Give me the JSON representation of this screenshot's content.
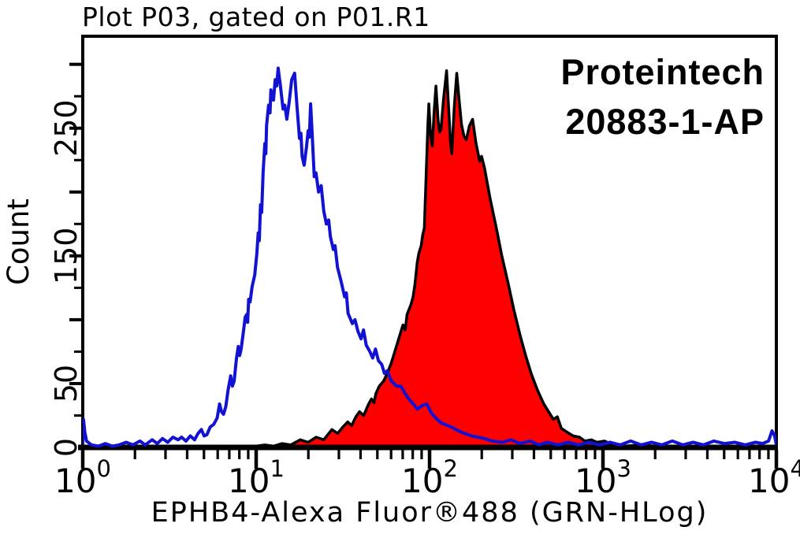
{
  "header": {
    "title": "Plot P03, gated on P01.R1"
  },
  "watermark": {
    "line1": "Proteintech",
    "line2": "20883-1-AP"
  },
  "chart_data": {
    "type": "line",
    "subtype": "flow-cytometry-overlay-histogram",
    "title": "Plot P03, gated on P01.R1",
    "xlabel": "EPHB4-Alexa Fluor®488 (GRN-HLog)",
    "ylabel": "Count",
    "x_scale": "log10",
    "x_units": "log10(fluorescence intensity)",
    "xlim_log": [
      0,
      4
    ],
    "x_tick_exponents": [
      0,
      1,
      2,
      3,
      4
    ],
    "ylim": [
      0,
      322
    ],
    "y_tick_minor_step": 25,
    "y_tick_major_step": 50,
    "y_labeled_ticks": [
      0,
      50,
      150,
      250
    ],
    "grid": false,
    "legend_position": "none",
    "colors": {
      "control_line": "#1212d2",
      "sample_fill": "#ff0000",
      "sample_outline": "#000000",
      "axis": "#000000"
    },
    "series": [
      {
        "name": "sample-EPHB4-stained (red filled)",
        "color": "#000000",
        "fill": "#ff0000",
        "points": [
          [
            1.0,
            1
          ],
          [
            1.05,
            2
          ],
          [
            1.1,
            1
          ],
          [
            1.15,
            3
          ],
          [
            1.2,
            2
          ],
          [
            1.254,
            6
          ],
          [
            1.3,
            4
          ],
          [
            1.346,
            8
          ],
          [
            1.39,
            6
          ],
          [
            1.437,
            14
          ],
          [
            1.47,
            11
          ],
          [
            1.5,
            16
          ],
          [
            1.528,
            20
          ],
          [
            1.55,
            17
          ],
          [
            1.575,
            24
          ],
          [
            1.596,
            28
          ],
          [
            1.62,
            25
          ],
          [
            1.645,
            33
          ],
          [
            1.665,
            38
          ],
          [
            1.68,
            35
          ],
          [
            1.69,
            42
          ],
          [
            1.71,
            48
          ],
          [
            1.735,
            52
          ],
          [
            1.756,
            58
          ],
          [
            1.779,
            66
          ],
          [
            1.802,
            76
          ],
          [
            1.824,
            86
          ],
          [
            1.847,
            96
          ],
          [
            1.86,
            92
          ],
          [
            1.87,
            104
          ],
          [
            1.893,
            112
          ],
          [
            1.905,
            118
          ],
          [
            1.916,
            128
          ],
          [
            1.929,
            145
          ],
          [
            1.938,
            152
          ],
          [
            1.952,
            158
          ],
          [
            1.96,
            166
          ],
          [
            1.97,
            172
          ],
          [
            1.978,
            205
          ],
          [
            1.984,
            228
          ],
          [
            1.99,
            252
          ],
          [
            1.996,
            269
          ],
          [
            2.006,
            244
          ],
          [
            2.016,
            236
          ],
          [
            2.026,
            262
          ],
          [
            2.037,
            283
          ],
          [
            2.05,
            255
          ],
          [
            2.058,
            247
          ],
          [
            2.066,
            249
          ],
          [
            2.08,
            272
          ],
          [
            2.098,
            295
          ],
          [
            2.113,
            258
          ],
          [
            2.12,
            240
          ],
          [
            2.128,
            230
          ],
          [
            2.143,
            268
          ],
          [
            2.157,
            293
          ],
          [
            2.17,
            273
          ],
          [
            2.184,
            253
          ],
          [
            2.198,
            244
          ],
          [
            2.212,
            241
          ],
          [
            2.23,
            252
          ],
          [
            2.248,
            257
          ],
          [
            2.268,
            238
          ],
          [
            2.289,
            224
          ],
          [
            2.3,
            228
          ],
          [
            2.317,
            219
          ],
          [
            2.349,
            195
          ],
          [
            2.385,
            172
          ],
          [
            2.417,
            150
          ],
          [
            2.454,
            128
          ],
          [
            2.486,
            108
          ],
          [
            2.522,
            88
          ],
          [
            2.554,
            72
          ],
          [
            2.586,
            58
          ],
          [
            2.622,
            45
          ],
          [
            2.659,
            34
          ],
          [
            2.691,
            27
          ],
          [
            2.714,
            22
          ],
          [
            2.737,
            24
          ],
          [
            2.76,
            15
          ],
          [
            2.792,
            12
          ],
          [
            2.828,
            9
          ],
          [
            2.865,
            8
          ],
          [
            2.896,
            5
          ],
          [
            2.933,
            6
          ],
          [
            2.965,
            4
          ],
          [
            3.01,
            5
          ],
          [
            3.056,
            2
          ],
          [
            3.124,
            1
          ],
          [
            3.22,
            2
          ],
          [
            3.3,
            1
          ],
          [
            3.45,
            1
          ],
          [
            3.6,
            0
          ],
          [
            3.8,
            0
          ],
          [
            4.0,
            0
          ]
        ]
      },
      {
        "name": "control-unstained (blue open)",
        "color": "#1212d2",
        "fill": null,
        "points": [
          [
            0.0,
            2
          ],
          [
            0.004,
            22
          ],
          [
            0.012,
            12
          ],
          [
            0.022,
            5
          ],
          [
            0.05,
            2
          ],
          [
            0.09,
            1
          ],
          [
            0.13,
            3
          ],
          [
            0.17,
            1
          ],
          [
            0.21,
            2
          ],
          [
            0.25,
            4
          ],
          [
            0.29,
            2
          ],
          [
            0.33,
            5
          ],
          [
            0.36,
            2
          ],
          [
            0.4,
            6
          ],
          [
            0.43,
            3
          ],
          [
            0.46,
            7
          ],
          [
            0.49,
            4
          ],
          [
            0.52,
            8
          ],
          [
            0.55,
            6
          ],
          [
            0.57,
            8
          ],
          [
            0.595,
            5
          ],
          [
            0.62,
            9
          ],
          [
            0.645,
            6
          ],
          [
            0.665,
            11
          ],
          [
            0.684,
            14
          ],
          [
            0.7,
            9
          ],
          [
            0.716,
            10
          ],
          [
            0.735,
            16
          ],
          [
            0.755,
            18
          ],
          [
            0.775,
            23
          ],
          [
            0.789,
            34
          ],
          [
            0.8,
            28
          ],
          [
            0.812,
            26
          ],
          [
            0.825,
            32
          ],
          [
            0.838,
            45
          ],
          [
            0.853,
            56
          ],
          [
            0.863,
            48
          ],
          [
            0.873,
            52
          ],
          [
            0.886,
            69
          ],
          [
            0.897,
            79
          ],
          [
            0.905,
            72
          ],
          [
            0.913,
            77
          ],
          [
            0.925,
            89
          ],
          [
            0.937,
            102
          ],
          [
            0.945,
            104
          ],
          [
            0.951,
            98
          ],
          [
            0.957,
            116
          ],
          [
            0.965,
            114
          ],
          [
            0.977,
            126
          ],
          [
            0.992,
            135
          ],
          [
            1.004,
            152
          ],
          [
            1.012,
            168
          ],
          [
            1.018,
            162
          ],
          [
            1.025,
            190
          ],
          [
            1.032,
            184
          ],
          [
            1.04,
            215
          ],
          [
            1.05,
            238
          ],
          [
            1.056,
            230
          ],
          [
            1.06,
            252
          ],
          [
            1.072,
            268
          ],
          [
            1.08,
            262
          ],
          [
            1.085,
            280
          ],
          [
            1.095,
            275
          ],
          [
            1.1,
            272
          ],
          [
            1.11,
            288
          ],
          [
            1.118,
            283
          ],
          [
            1.127,
            297
          ],
          [
            1.14,
            283
          ],
          [
            1.155,
            265
          ],
          [
            1.165,
            268
          ],
          [
            1.177,
            257
          ],
          [
            1.19,
            270
          ],
          [
            1.205,
            288
          ],
          [
            1.222,
            293
          ],
          [
            1.235,
            268
          ],
          [
            1.25,
            242
          ],
          [
            1.258,
            246
          ],
          [
            1.265,
            228
          ],
          [
            1.277,
            221
          ],
          [
            1.29,
            235
          ],
          [
            1.3,
            248
          ],
          [
            1.307,
            243
          ],
          [
            1.314,
            269
          ],
          [
            1.325,
            240
          ],
          [
            1.335,
            212
          ],
          [
            1.345,
            215
          ],
          [
            1.36,
            200
          ],
          [
            1.375,
            205
          ],
          [
            1.39,
            185
          ],
          [
            1.405,
            175
          ],
          [
            1.418,
            178
          ],
          [
            1.428,
            165
          ],
          [
            1.445,
            155
          ],
          [
            1.455,
            158
          ],
          [
            1.469,
            141
          ],
          [
            1.49,
            130
          ],
          [
            1.51,
            118
          ],
          [
            1.52,
            121
          ],
          [
            1.53,
            105
          ],
          [
            1.555,
            97
          ],
          [
            1.57,
            100
          ],
          [
            1.587,
            91
          ],
          [
            1.605,
            85
          ],
          [
            1.619,
            92
          ],
          [
            1.635,
            80
          ],
          [
            1.656,
            75
          ],
          [
            1.672,
            70
          ],
          [
            1.688,
            77
          ],
          [
            1.705,
            68
          ],
          [
            1.724,
            65
          ],
          [
            1.74,
            58
          ],
          [
            1.756,
            60
          ],
          [
            1.78,
            52
          ],
          [
            1.81,
            48
          ],
          [
            1.834,
            48
          ],
          [
            1.86,
            42
          ],
          [
            1.88,
            38
          ],
          [
            1.906,
            34
          ],
          [
            1.93,
            30
          ],
          [
            1.96,
            33
          ],
          [
            1.984,
            34
          ],
          [
            2.01,
            27
          ],
          [
            2.043,
            22
          ],
          [
            2.07,
            19
          ],
          [
            2.107,
            17
          ],
          [
            2.14,
            15
          ],
          [
            2.166,
            13
          ],
          [
            2.2,
            11
          ],
          [
            2.244,
            9
          ],
          [
            2.28,
            8
          ],
          [
            2.317,
            7
          ],
          [
            2.36,
            5
          ],
          [
            2.42,
            4
          ],
          [
            2.47,
            6
          ],
          [
            2.52,
            3
          ],
          [
            2.58,
            5
          ],
          [
            2.63,
            2
          ],
          [
            2.68,
            4
          ],
          [
            2.74,
            2
          ],
          [
            2.8,
            4
          ],
          [
            2.86,
            2
          ],
          [
            2.92,
            4
          ],
          [
            2.98,
            2
          ],
          [
            3.04,
            4
          ],
          [
            3.1,
            2
          ],
          [
            3.16,
            5
          ],
          [
            3.22,
            2
          ],
          [
            3.28,
            4
          ],
          [
            3.34,
            2
          ],
          [
            3.4,
            5
          ],
          [
            3.46,
            2
          ],
          [
            3.52,
            4
          ],
          [
            3.58,
            2
          ],
          [
            3.64,
            5
          ],
          [
            3.7,
            3
          ],
          [
            3.76,
            4
          ],
          [
            3.82,
            2
          ],
          [
            3.88,
            4
          ],
          [
            3.92,
            3
          ],
          [
            3.955,
            5
          ],
          [
            3.975,
            13
          ],
          [
            3.99,
            9
          ],
          [
            4.0,
            2
          ]
        ]
      }
    ]
  }
}
